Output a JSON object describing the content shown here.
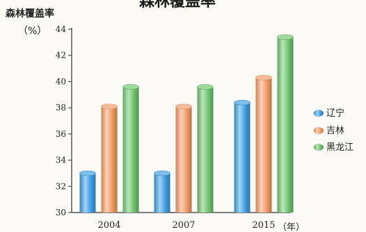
{
  "chart_data": {
    "type": "bar",
    "title": "森林覆盖率",
    "ylabel": "森林覆盖率",
    "yunit": "（%）",
    "xunit": "（年）",
    "categories": [
      "2004",
      "2007",
      "2015"
    ],
    "ylim": [
      30,
      44
    ],
    "yticks": [
      30,
      32,
      34,
      36,
      38,
      40,
      42,
      44
    ],
    "series": [
      {
        "name": "辽宁",
        "values": [
          33.0,
          33.0,
          38.4
        ],
        "color": "#3a9de0"
      },
      {
        "name": "吉林",
        "values": [
          38.1,
          38.1,
          40.3
        ],
        "color": "#f29a63"
      },
      {
        "name": "黑龙江",
        "values": [
          39.6,
          39.6,
          43.4
        ],
        "color": "#6cc46a"
      }
    ],
    "legend_position": "right",
    "grid": false
  }
}
